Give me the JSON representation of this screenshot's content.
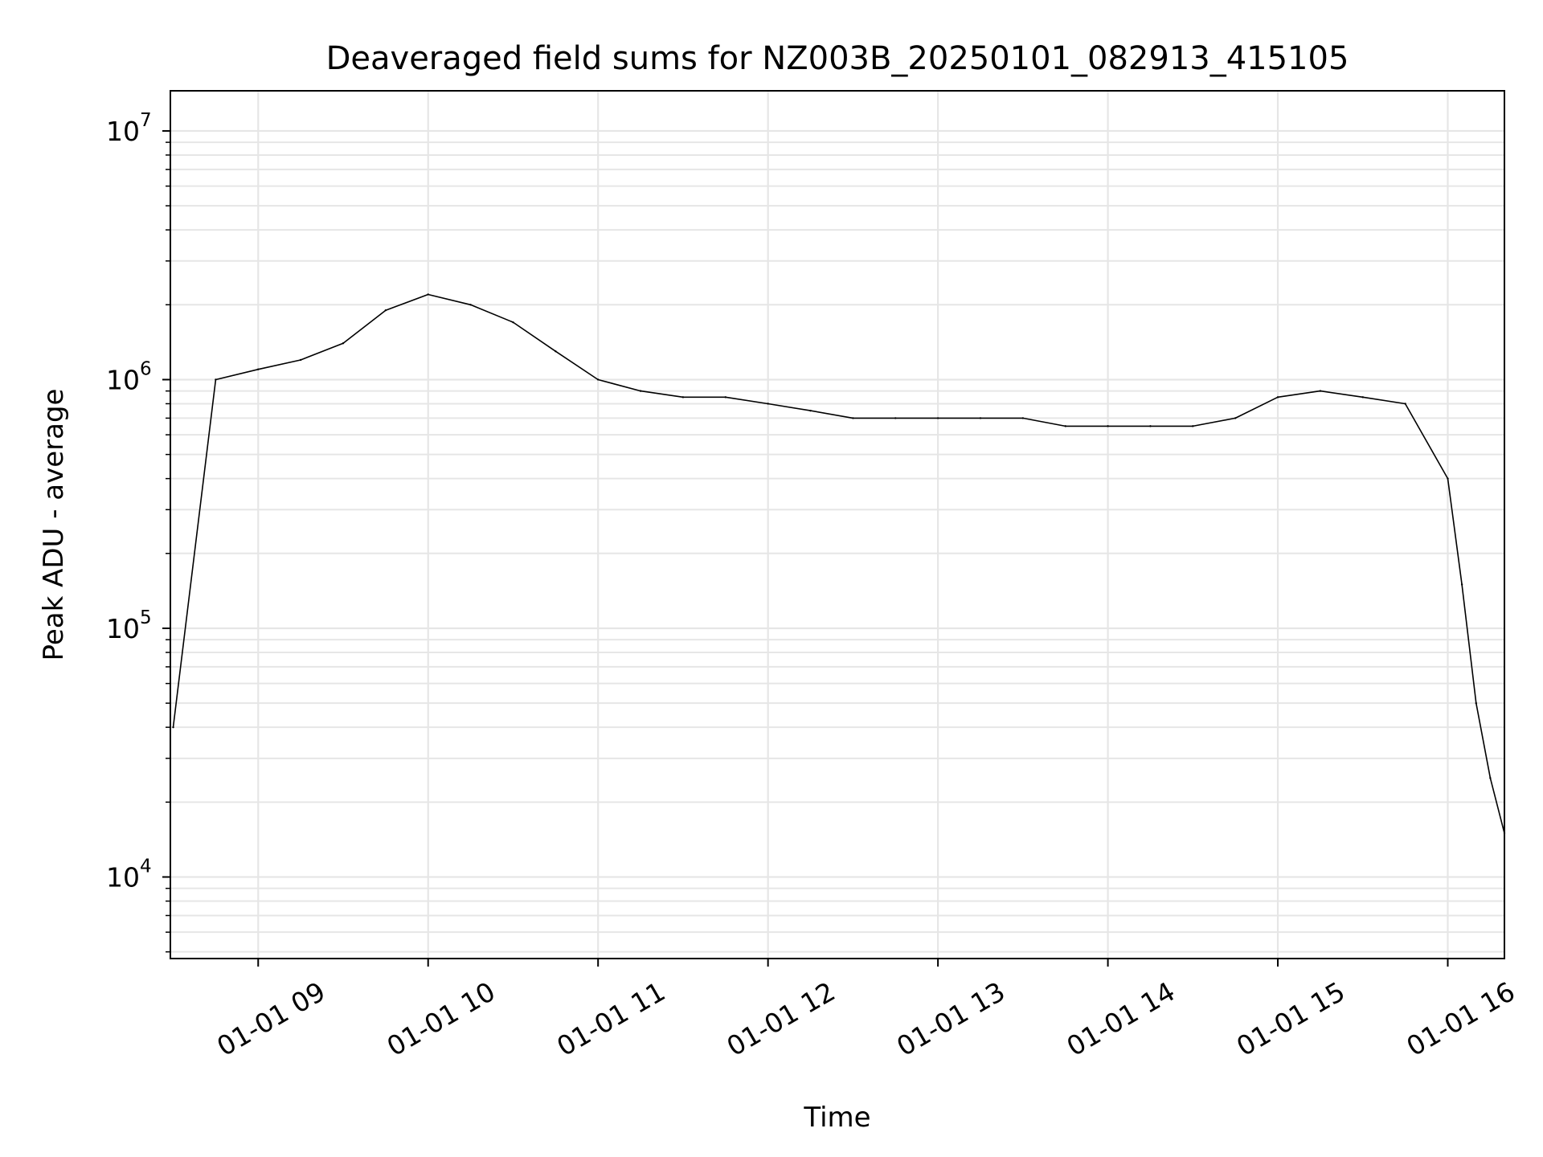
{
  "chart_data": {
    "type": "line",
    "title": "Deaveraged field sums for NZ003B_20250101_082913_415105",
    "xlabel": "Time",
    "ylabel": "Peak ADU - average",
    "yscale": "log",
    "ylim": [
      4700,
      14500000
    ],
    "xlim": [
      "01-01 08:29",
      "01-01 16:20"
    ],
    "grid": true,
    "line_color": "#000000",
    "grid_color": "#e6e6e6",
    "x_ticks": [
      {
        "label": "01-01 09",
        "time": "09:00"
      },
      {
        "label": "01-01 10",
        "time": "10:00"
      },
      {
        "label": "01-01 11",
        "time": "11:00"
      },
      {
        "label": "01-01 12",
        "time": "12:00"
      },
      {
        "label": "01-01 13",
        "time": "13:00"
      },
      {
        "label": "01-01 14",
        "time": "14:00"
      },
      {
        "label": "01-01 15",
        "time": "15:00"
      },
      {
        "label": "01-01 16",
        "time": "16:00"
      }
    ],
    "y_ticks": [
      {
        "base": "10",
        "exp": "4",
        "value": 10000
      },
      {
        "base": "10",
        "exp": "5",
        "value": 100000
      },
      {
        "base": "10",
        "exp": "6",
        "value": 1000000
      },
      {
        "base": "10",
        "exp": "7",
        "value": 10000000
      }
    ],
    "series": [
      {
        "x": [
          "08:30",
          "08:45",
          "09:00",
          "09:15",
          "09:30",
          "09:45",
          "10:00",
          "10:15",
          "10:30",
          "10:45",
          "11:00",
          "11:15",
          "11:30",
          "11:45",
          "12:00",
          "12:15",
          "12:30",
          "12:45",
          "13:00",
          "13:15",
          "13:30",
          "13:45",
          "14:00",
          "14:15",
          "14:30",
          "14:45",
          "15:00",
          "15:15",
          "15:30",
          "15:45",
          "16:00",
          "16:05",
          "16:10",
          "16:15",
          "16:20"
        ],
        "y": [
          40000,
          1000000,
          1100000,
          1200000,
          1400000,
          1900000,
          2200000,
          2000000,
          1700000,
          1300000,
          1000000,
          900000,
          850000,
          850000,
          800000,
          750000,
          700000,
          700000,
          700000,
          700000,
          700000,
          650000,
          650000,
          650000,
          650000,
          700000,
          850000,
          900000,
          850000,
          800000,
          400000,
          150000,
          50000,
          25000,
          15000
        ]
      }
    ]
  }
}
